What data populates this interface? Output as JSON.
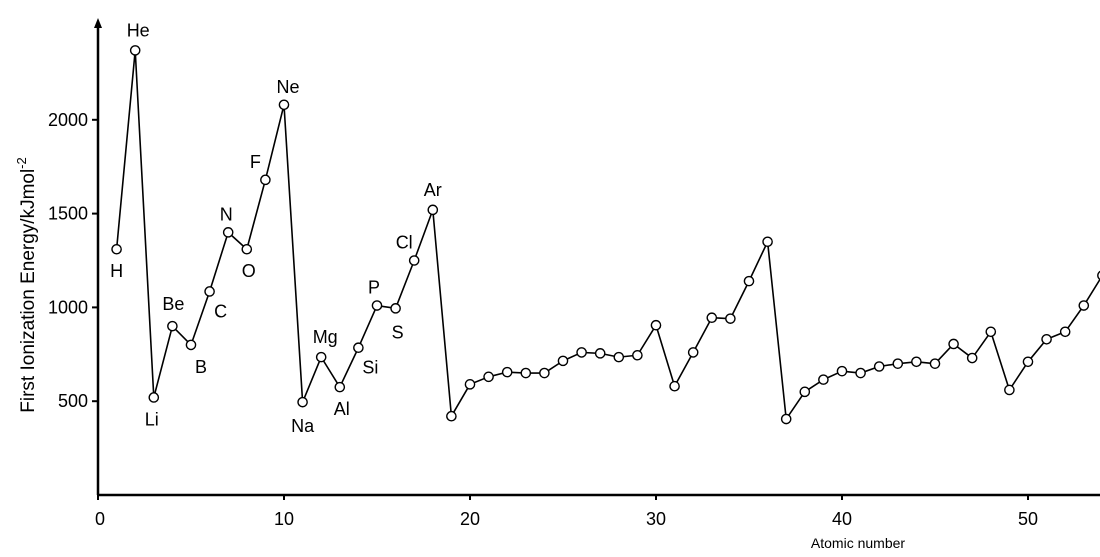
{
  "chart_data": {
    "type": "line",
    "title": "",
    "xlabel": "Atomic number",
    "ylabel": "First Ionization Energy/kJmol",
    "ylabel_superscript": "-2",
    "xlim": [
      0,
      54
    ],
    "ylim": [
      0,
      2500
    ],
    "xticks": [
      {
        "value": 0,
        "label": "0"
      },
      {
        "value": 10,
        "label": "10"
      },
      {
        "value": 20,
        "label": "20"
      },
      {
        "value": 30,
        "label": "30"
      },
      {
        "value": 40,
        "label": "40"
      },
      {
        "value": 50,
        "label": "50"
      }
    ],
    "yticks": [
      {
        "value": 500,
        "label": "500"
      },
      {
        "value": 1000,
        "label": "1000"
      },
      {
        "value": 1500,
        "label": "1500"
      },
      {
        "value": 2000,
        "label": "2000"
      }
    ],
    "grid": false,
    "legend": "none",
    "marker": "open-circle",
    "line_color": "#000000",
    "series": [
      {
        "x": [
          1,
          2,
          3,
          4,
          5,
          6,
          7,
          8,
          9,
          10,
          11,
          12,
          13,
          14,
          15,
          16,
          17,
          18,
          19,
          20,
          21,
          22,
          23,
          24,
          25,
          26,
          27,
          28,
          29,
          30,
          31,
          32,
          33,
          34,
          35,
          36,
          37,
          38,
          39,
          40,
          41,
          42,
          43,
          44,
          45,
          46,
          47,
          48,
          49,
          50,
          51,
          52,
          53,
          54
        ],
        "values": [
          1310,
          2370,
          520,
          900,
          800,
          1085,
          1400,
          1310,
          1680,
          2080,
          495,
          735,
          575,
          785,
          1010,
          995,
          1250,
          1520,
          420,
          590,
          630,
          655,
          650,
          650,
          715,
          760,
          755,
          735,
          745,
          905,
          580,
          760,
          945,
          940,
          1140,
          1350,
          405,
          550,
          615,
          660,
          650,
          685,
          700,
          710,
          700,
          805,
          730,
          870,
          560,
          710,
          830,
          870,
          1010,
          1170
        ]
      }
    ],
    "annotations": [
      {
        "text": "H",
        "x": 1,
        "y": 1310
      },
      {
        "text": "He",
        "x": 2,
        "y": 2370
      },
      {
        "text": "Li",
        "x": 3,
        "y": 520
      },
      {
        "text": "Be",
        "x": 4,
        "y": 900
      },
      {
        "text": "B",
        "x": 5,
        "y": 800
      },
      {
        "text": "C",
        "x": 6,
        "y": 1085
      },
      {
        "text": "N",
        "x": 7,
        "y": 1400
      },
      {
        "text": "O",
        "x": 8,
        "y": 1310
      },
      {
        "text": "F",
        "x": 9,
        "y": 1680
      },
      {
        "text": "Ne",
        "x": 10,
        "y": 2080
      },
      {
        "text": "Na",
        "x": 11,
        "y": 495
      },
      {
        "text": "Mg",
        "x": 12,
        "y": 735
      },
      {
        "text": "Al",
        "x": 13,
        "y": 575
      },
      {
        "text": "Si",
        "x": 14,
        "y": 785
      },
      {
        "text": "P",
        "x": 15,
        "y": 1010
      },
      {
        "text": "S",
        "x": 16,
        "y": 995
      },
      {
        "text": "Cl",
        "x": 17,
        "y": 1250
      },
      {
        "text": "Ar",
        "x": 18,
        "y": 1520
      }
    ]
  }
}
